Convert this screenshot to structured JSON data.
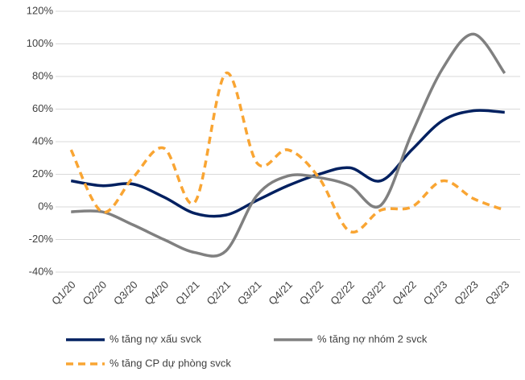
{
  "chart_data": {
    "type": "line",
    "categories": [
      "Q1/20",
      "Q2/20",
      "Q3/20",
      "Q4/20",
      "Q1/21",
      "Q2/21",
      "Q3/21",
      "Q4/21",
      "Q1/22",
      "Q2/22",
      "Q3/22",
      "Q4/22",
      "Q1/23",
      "Q2/23",
      "Q3/23"
    ],
    "series": [
      {
        "name": "% tăng nợ xấu svck",
        "color": "#002060",
        "dash": false,
        "values": [
          16,
          13,
          14,
          6,
          -4,
          -5,
          4,
          13,
          20,
          24,
          16,
          35,
          53,
          59,
          58
        ]
      },
      {
        "name": "% tăng nợ nhóm 2 svck",
        "color": "#808080",
        "dash": false,
        "values": [
          -3,
          -3,
          -11,
          -20,
          -28,
          -27,
          7,
          19,
          18,
          13,
          1,
          45,
          85,
          106,
          82
        ]
      },
      {
        "name": "% tăng CP dự phòng svck",
        "color": "#F9A533",
        "dash": true,
        "values": [
          35,
          -3,
          18,
          36,
          3,
          82,
          27,
          35,
          18,
          -15,
          -2,
          0,
          16,
          5,
          -2
        ]
      }
    ],
    "ylim": [
      -40,
      120
    ],
    "yticks": [
      {
        "value": -40,
        "label": "-40%"
      },
      {
        "value": -20,
        "label": "-20%"
      },
      {
        "value": 0,
        "label": "0%"
      },
      {
        "value": 20,
        "label": "20%"
      },
      {
        "value": 40,
        "label": "40%"
      },
      {
        "value": 60,
        "label": "60%"
      },
      {
        "value": 80,
        "label": "80%"
      },
      {
        "value": 100,
        "label": "100%"
      },
      {
        "value": 120,
        "label": "120%"
      }
    ],
    "grid": true
  }
}
